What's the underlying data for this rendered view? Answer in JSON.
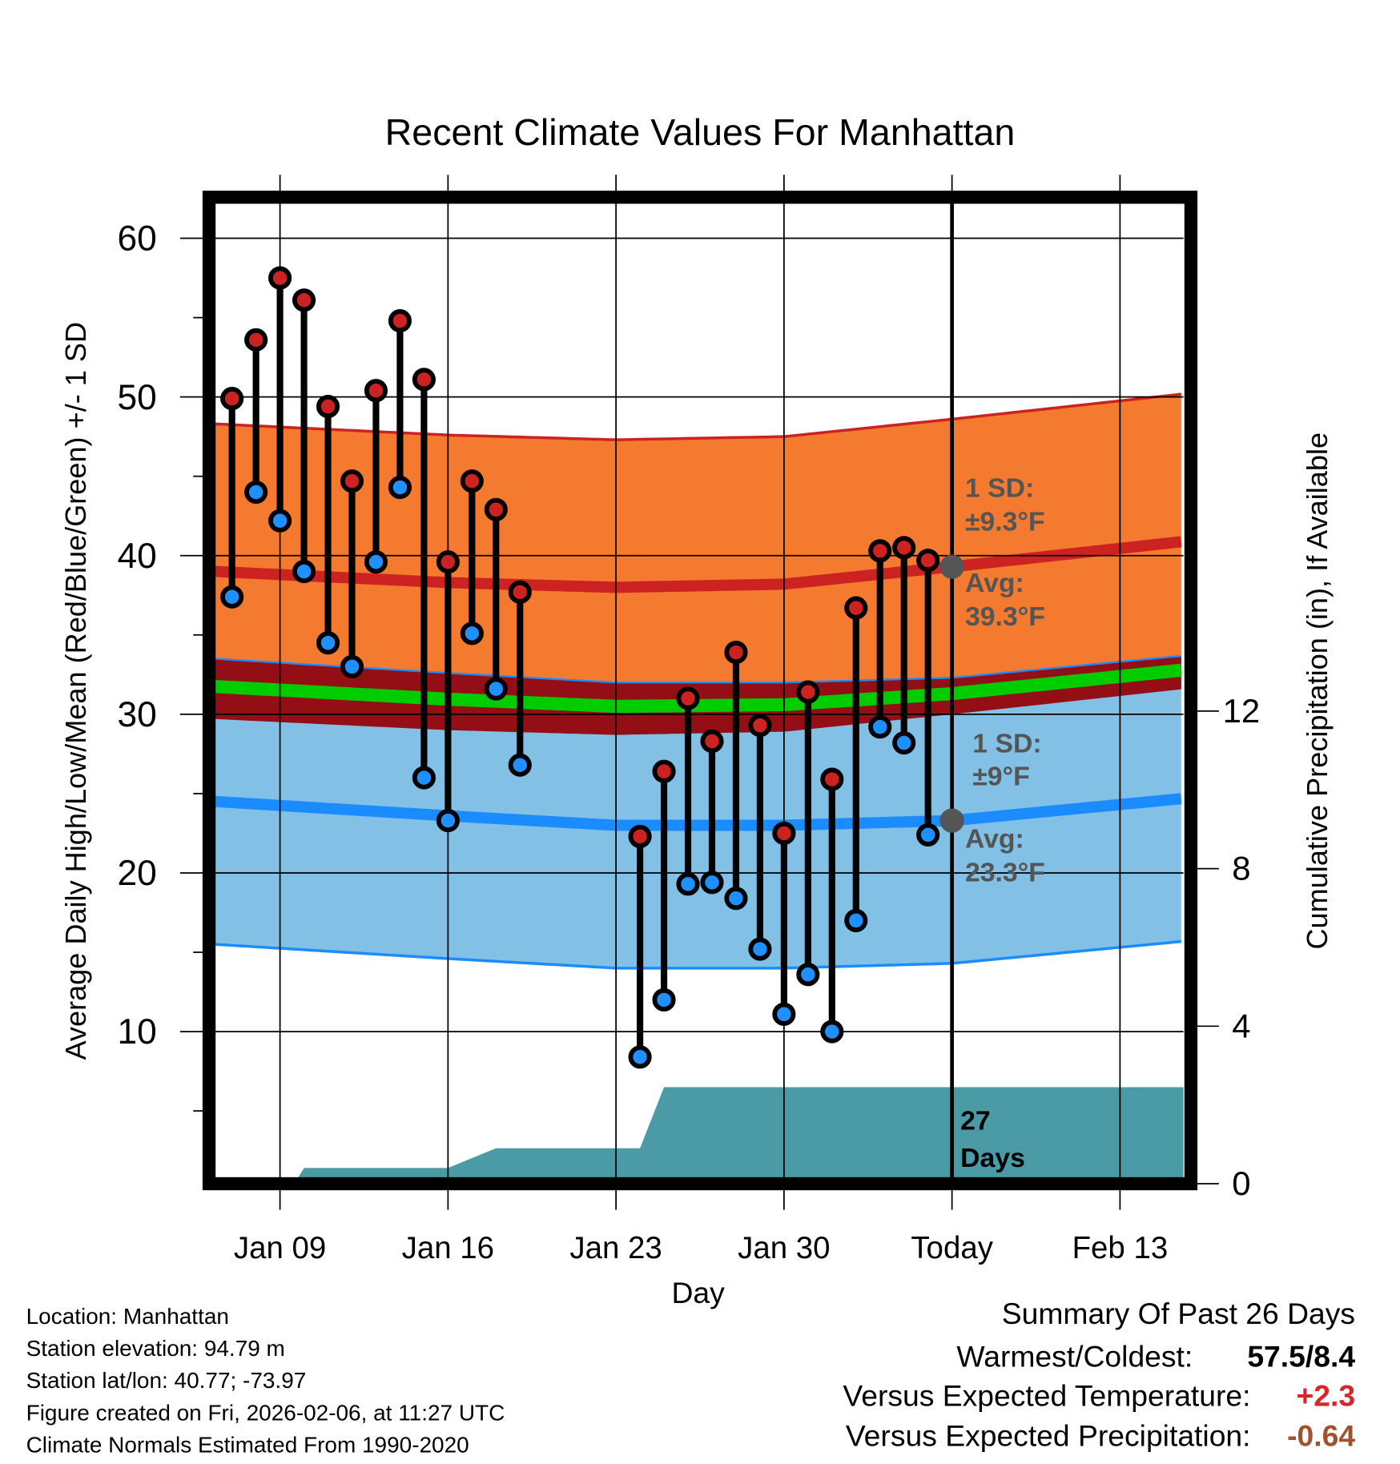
{
  "chart_data": {
    "type": "line",
    "title": "Recent Climate Values For Manhattan",
    "xlabel": "Day",
    "ylabel": "Average Daily High/Low/Mean (Red/Blue/Green) +/- 1 SD",
    "y2label": "Cumulative Precipitation (in), If Available",
    "ylim": [
      0,
      62
    ],
    "y2lim": [
      0,
      14.7
    ],
    "yticks": [
      10,
      20,
      30,
      40,
      50,
      60
    ],
    "y2ticks": [
      0,
      4,
      8,
      12
    ],
    "xticks": [
      {
        "label": "Jan 09",
        "day": 9
      },
      {
        "label": "Jan 16",
        "day": 16
      },
      {
        "label": "Jan 23",
        "day": 23
      },
      {
        "label": "Jan 30",
        "day": 30
      },
      {
        "label": "Today",
        "day": 37
      },
      {
        "label": "Feb 13",
        "day": 44
      }
    ],
    "today_day": 37,
    "daily": [
      {
        "date": "Jan 07",
        "day": 7,
        "high": 49.9,
        "low": 37.4
      },
      {
        "date": "Jan 08",
        "day": 8,
        "high": 53.6,
        "low": 44.0
      },
      {
        "date": "Jan 09",
        "day": 9,
        "high": 57.5,
        "low": 42.2
      },
      {
        "date": "Jan 10",
        "day": 10,
        "high": 56.1,
        "low": 39.0
      },
      {
        "date": "Jan 11",
        "day": 11,
        "high": 49.4,
        "low": 34.5
      },
      {
        "date": "Jan 12",
        "day": 12,
        "high": 44.7,
        "low": 33.0
      },
      {
        "date": "Jan 13",
        "day": 13,
        "high": 50.4,
        "low": 39.6
      },
      {
        "date": "Jan 14",
        "day": 14,
        "high": 54.8,
        "low": 44.3
      },
      {
        "date": "Jan 15",
        "day": 15,
        "high": 51.1,
        "low": 26.0
      },
      {
        "date": "Jan 16",
        "day": 16,
        "high": 39.6,
        "low": 23.3
      },
      {
        "date": "Jan 17",
        "day": 17,
        "high": 44.7,
        "low": 35.1
      },
      {
        "date": "Jan 18",
        "day": 18,
        "high": 42.9,
        "low": 31.6
      },
      {
        "date": "Jan 19",
        "day": 19,
        "high": 37.7,
        "low": 26.8
      },
      {
        "date": "Jan 24",
        "day": 24,
        "high": 22.3,
        "low": 8.4
      },
      {
        "date": "Jan 25",
        "day": 25,
        "high": 26.4,
        "low": 12.0
      },
      {
        "date": "Jan 26",
        "day": 26,
        "high": 31.0,
        "low": 19.3
      },
      {
        "date": "Jan 27",
        "day": 27,
        "high": 28.3,
        "low": 19.4
      },
      {
        "date": "Jan 28",
        "day": 28,
        "high": 33.9,
        "low": 18.4
      },
      {
        "date": "Jan 29",
        "day": 29,
        "high": 29.3,
        "low": 15.2
      },
      {
        "date": "Jan 30",
        "day": 30,
        "high": 22.5,
        "low": 11.1
      },
      {
        "date": "Jan 31",
        "day": 31,
        "high": 31.4,
        "low": 13.6
      },
      {
        "date": "Feb 01",
        "day": 32,
        "high": 25.9,
        "low": 10.0
      },
      {
        "date": "Feb 02",
        "day": 33,
        "high": 36.7,
        "low": 17.0
      },
      {
        "date": "Feb 03",
        "day": 34,
        "high": 40.3,
        "low": 29.2
      },
      {
        "date": "Feb 04",
        "day": 35,
        "high": 40.5,
        "low": 28.2
      },
      {
        "date": "Feb 05",
        "day": 36,
        "high": 39.7,
        "low": 22.4
      }
    ],
    "normals": {
      "days": [
        6.3,
        16,
        23,
        30,
        37,
        46.7
      ],
      "high_avg": [
        39.0,
        38.3,
        38.0,
        38.2,
        39.3,
        40.9
      ],
      "high_sd": 9.3,
      "low_avg": [
        24.5,
        23.6,
        23.0,
        23.0,
        23.3,
        24.7
      ],
      "low_sd": 9.0
    },
    "precip_cumulative": {
      "days": [
        6.3,
        9.6,
        10,
        16,
        16.8,
        18,
        24,
        25,
        46.7
      ],
      "values": [
        0,
        0,
        0.4,
        0.4,
        0.6,
        0.9,
        0.9,
        2.45,
        2.45
      ]
    },
    "annotations": {
      "high_sd": [
        "1 SD:",
        "±9.3°F"
      ],
      "high_avg": [
        "Avg:",
        "39.3°F"
      ],
      "low_sd": [
        "1 SD:",
        "±9°F"
      ],
      "low_avg": [
        "Avg:",
        "23.3°F"
      ],
      "days": [
        "27",
        "Days"
      ]
    },
    "colors": {
      "high_band": "#f47a30",
      "high_line": "#cc2222",
      "overlap": "#930e15",
      "mean_line": "#00cc00",
      "low_band": "#82c0e6",
      "low_line": "#1a8cff",
      "precip": "#4a9ba5",
      "annotation": "#555555",
      "high_dot": "#cc2222",
      "low_dot": "#1e90ff"
    }
  },
  "footer": {
    "lines": [
      "Location: Manhattan",
      "Station elevation: 94.79 m",
      "Station lat/lon: 40.77; -73.97",
      "Figure created on Fri, 2026-02-06, at 11:27 UTC",
      "Climate Normals Estimated From 1990-2020"
    ]
  },
  "summary": {
    "title": "Summary Of Past 26 Days",
    "warmest_label": "Warmest/Coldest:",
    "warmest_value": "57.5/8.4",
    "temp_label": "Versus Expected Temperature:",
    "temp_value": "+2.3",
    "temp_color": "#d62728",
    "precip_label": "Versus Expected Precipitation:",
    "precip_value": "-0.64",
    "precip_color": "#a0522d"
  }
}
